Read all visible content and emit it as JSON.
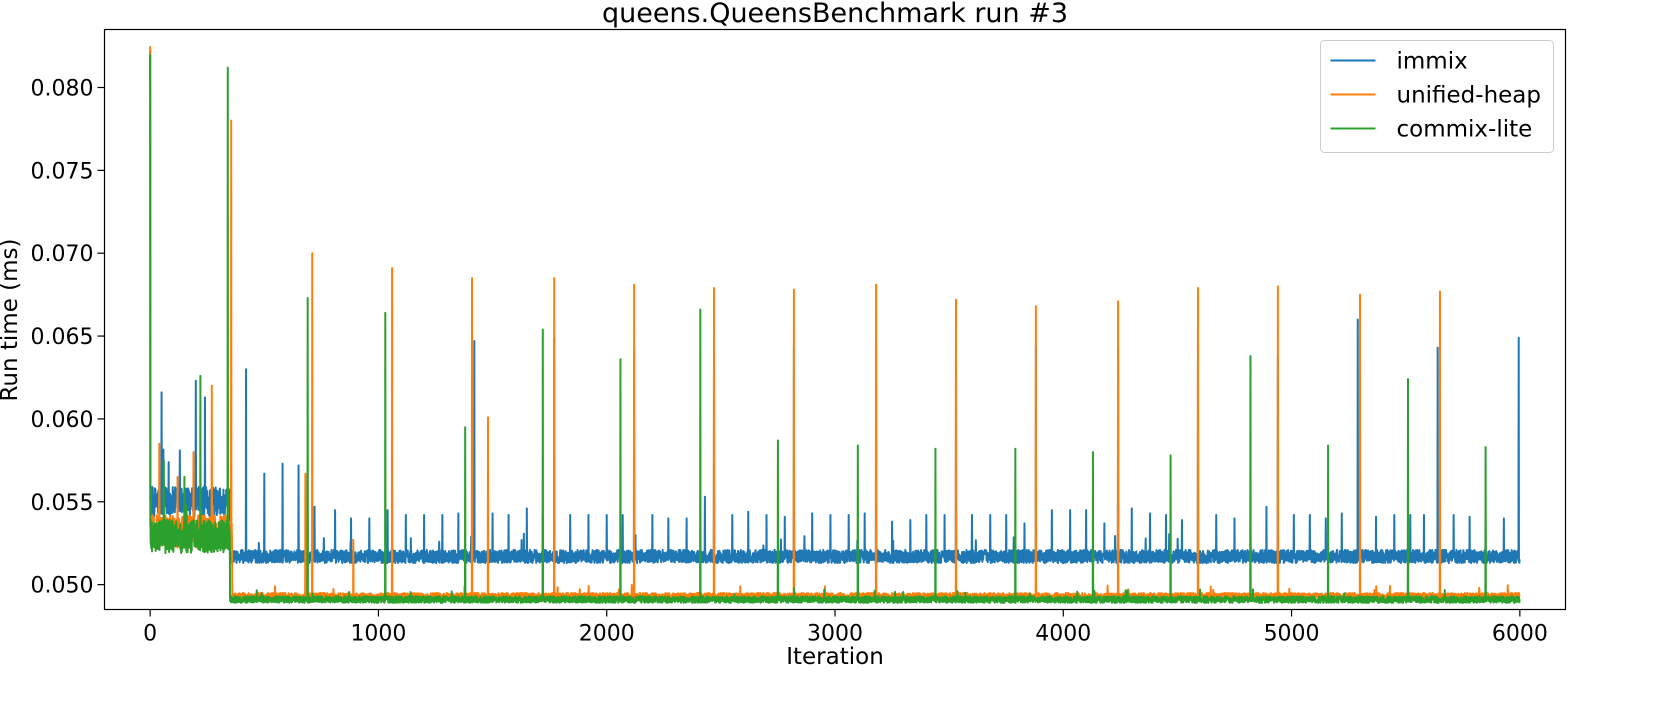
{
  "chart_data": {
    "type": "line",
    "title": "queens.QueensBenchmark run #3",
    "xlabel": "Iteration",
    "ylabel": "Run time (ms)",
    "xlim": [
      -200,
      6200
    ],
    "ylim": [
      0.0485,
      0.0835
    ],
    "xticks": [
      0,
      1000,
      2000,
      3000,
      4000,
      5000,
      6000
    ],
    "xtick_labels": [
      "0",
      "1000",
      "2000",
      "3000",
      "4000",
      "5000",
      "6000"
    ],
    "yticks": [
      0.05,
      0.055,
      0.06,
      0.065,
      0.07,
      0.075,
      0.08
    ],
    "ytick_labels": [
      "0.050",
      "0.055",
      "0.060",
      "0.065",
      "0.070",
      "0.075",
      "0.080"
    ],
    "grid": false,
    "legend_position": "top-right",
    "n_iterations": 6000,
    "series": [
      {
        "name": "immix",
        "color": "#1f77b4",
        "startup": {
          "first_value": 0.0822,
          "end_iteration": 350,
          "mean": 0.055,
          "spread": 0.0009
        },
        "steady": {
          "mean": 0.0517,
          "spread": 0.0004
        },
        "spikes": [
          [
            50,
            0.0616
          ],
          [
            130,
            0.0581
          ],
          [
            200,
            0.0623
          ],
          [
            240,
            0.0613
          ],
          [
            420,
            0.063
          ],
          [
            500,
            0.0567
          ],
          [
            580,
            0.0573
          ],
          [
            650,
            0.0572
          ],
          [
            720,
            0.0547
          ],
          [
            810,
            0.0545
          ],
          [
            880,
            0.054
          ],
          [
            960,
            0.054
          ],
          [
            1040,
            0.0545
          ],
          [
            1120,
            0.0542
          ],
          [
            1200,
            0.0542
          ],
          [
            1280,
            0.0542
          ],
          [
            1350,
            0.0543
          ],
          [
            1420,
            0.0647
          ],
          [
            1500,
            0.0543
          ],
          [
            1570,
            0.0542
          ],
          [
            1650,
            0.0546
          ],
          [
            1720,
            0.0542
          ],
          [
            1770,
            0.0649
          ],
          [
            1840,
            0.0542
          ],
          [
            1920,
            0.0542
          ],
          [
            2000,
            0.0542
          ],
          [
            2070,
            0.0542
          ],
          [
            2120,
            0.0643
          ],
          [
            2200,
            0.0542
          ],
          [
            2270,
            0.054
          ],
          [
            2350,
            0.054
          ],
          [
            2430,
            0.0553
          ],
          [
            2470,
            0.0644
          ],
          [
            2550,
            0.0542
          ],
          [
            2620,
            0.0544
          ],
          [
            2700,
            0.0542
          ],
          [
            2780,
            0.0541
          ],
          [
            2820,
            0.0644
          ],
          [
            2900,
            0.0543
          ],
          [
            2980,
            0.0542
          ],
          [
            3060,
            0.0542
          ],
          [
            3130,
            0.0543
          ],
          [
            3180,
            0.0645
          ],
          [
            3250,
            0.0538
          ],
          [
            3330,
            0.0539
          ],
          [
            3400,
            0.0542
          ],
          [
            3480,
            0.0542
          ],
          [
            3530,
            0.0638
          ],
          [
            3600,
            0.0542
          ],
          [
            3680,
            0.0542
          ],
          [
            3750,
            0.0542
          ],
          [
            3830,
            0.0537
          ],
          [
            3880,
            0.0644
          ],
          [
            3950,
            0.0545
          ],
          [
            4030,
            0.0545
          ],
          [
            4100,
            0.0545
          ],
          [
            4180,
            0.0537
          ],
          [
            4240,
            0.0643
          ],
          [
            4300,
            0.0546
          ],
          [
            4380,
            0.0543
          ],
          [
            4450,
            0.0542
          ],
          [
            4520,
            0.0539
          ],
          [
            4590,
            0.0642
          ],
          [
            4670,
            0.0542
          ],
          [
            4750,
            0.054
          ],
          [
            4820,
            0.0537
          ],
          [
            4890,
            0.0547
          ],
          [
            4940,
            0.0638
          ],
          [
            5010,
            0.0542
          ],
          [
            5080,
            0.0542
          ],
          [
            5150,
            0.054
          ],
          [
            5220,
            0.0543
          ],
          [
            5290,
            0.066
          ],
          [
            5370,
            0.0541
          ],
          [
            5450,
            0.0542
          ],
          [
            5520,
            0.0542
          ],
          [
            5580,
            0.0542
          ],
          [
            5640,
            0.0643
          ],
          [
            5710,
            0.0542
          ],
          [
            5780,
            0.0541
          ],
          [
            5850,
            0.0539
          ],
          [
            5930,
            0.054
          ],
          [
            5995,
            0.0649
          ]
        ]
      },
      {
        "name": "unified-heap",
        "color": "#ff7f0e",
        "startup": {
          "first_value": 0.0825,
          "end_iteration": 360,
          "mean": 0.0532,
          "spread": 0.001
        },
        "steady": {
          "mean": 0.0493,
          "spread": 0.0002
        },
        "spikes": [
          [
            40,
            0.0585
          ],
          [
            120,
            0.0565
          ],
          [
            190,
            0.058
          ],
          [
            270,
            0.062
          ],
          [
            355,
            0.078
          ],
          [
            680,
            0.0567
          ],
          [
            710,
            0.07
          ],
          [
            890,
            0.0527
          ],
          [
            1060,
            0.0691
          ],
          [
            1410,
            0.0685
          ],
          [
            1480,
            0.0601
          ],
          [
            1770,
            0.0685
          ],
          [
            2120,
            0.0681
          ],
          [
            2470,
            0.0679
          ],
          [
            2820,
            0.0678
          ],
          [
            3180,
            0.0681
          ],
          [
            3530,
            0.0672
          ],
          [
            3880,
            0.0668
          ],
          [
            4240,
            0.0671
          ],
          [
            4590,
            0.0679
          ],
          [
            4940,
            0.068
          ],
          [
            5300,
            0.0675
          ],
          [
            5650,
            0.0677
          ]
        ]
      },
      {
        "name": "commix-lite",
        "color": "#2ca02c",
        "startup": {
          "first_value": 0.082,
          "end_iteration": 350,
          "mean": 0.0529,
          "spread": 0.001
        },
        "steady": {
          "mean": 0.0491,
          "spread": 0.0002
        },
        "spikes": [
          [
            60,
            0.0575
          ],
          [
            150,
            0.0565
          ],
          [
            220,
            0.0626
          ],
          [
            340,
            0.0812
          ],
          [
            690,
            0.0673
          ],
          [
            1030,
            0.0664
          ],
          [
            1380,
            0.0595
          ],
          [
            1720,
            0.0654
          ],
          [
            2060,
            0.0636
          ],
          [
            2410,
            0.0666
          ],
          [
            2750,
            0.0587
          ],
          [
            3100,
            0.0584
          ],
          [
            3440,
            0.0582
          ],
          [
            3790,
            0.0582
          ],
          [
            4130,
            0.058
          ],
          [
            4470,
            0.0578
          ],
          [
            4820,
            0.0638
          ],
          [
            5160,
            0.0584
          ],
          [
            5510,
            0.0624
          ],
          [
            5850,
            0.0583
          ]
        ]
      }
    ]
  }
}
